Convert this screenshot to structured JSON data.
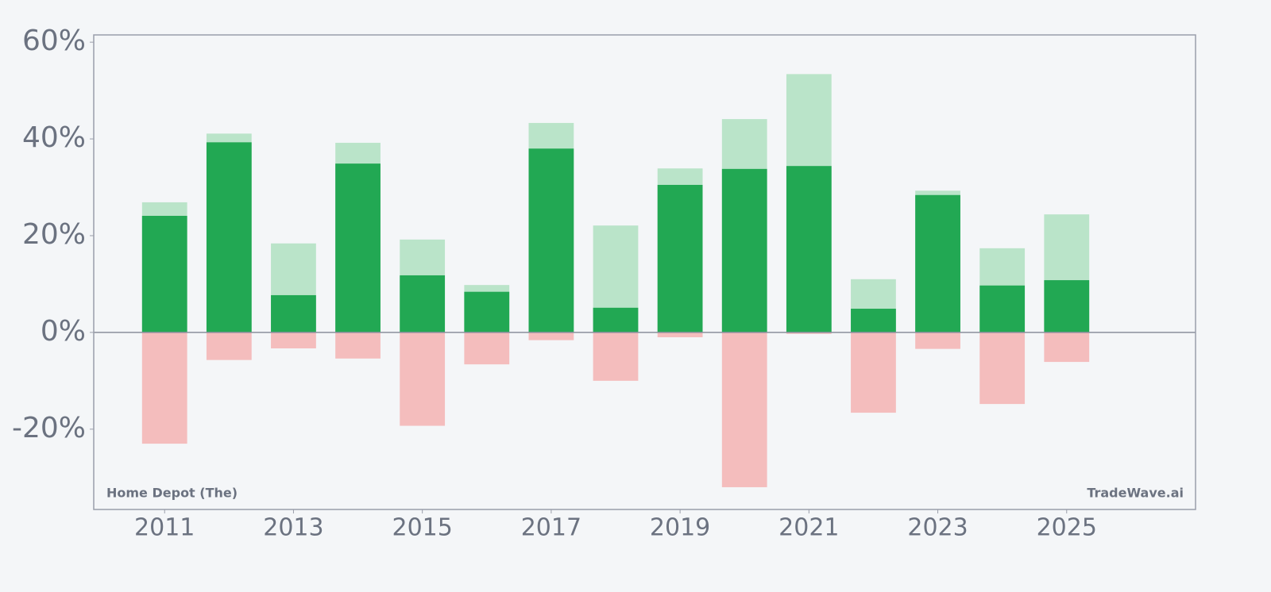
{
  "chart_data": {
    "type": "bar",
    "x": [
      2011,
      2012,
      2013,
      2014,
      2015,
      2016,
      2017,
      2018,
      2019,
      2020,
      2021,
      2022,
      2023,
      2024,
      2025
    ],
    "series": [
      {
        "color": "#bae4c9",
        "values": [
          26.9,
          41.1,
          18.4,
          39.2,
          19.2,
          9.8,
          43.3,
          22.1,
          33.9,
          44.1,
          53.4,
          11.0,
          29.3,
          17.4,
          24.4
        ]
      },
      {
        "color": "#22a853",
        "values": [
          24.1,
          39.3,
          7.7,
          34.9,
          11.8,
          8.4,
          38.0,
          5.1,
          30.5,
          33.8,
          34.4,
          4.9,
          28.4,
          9.7,
          10.8
        ]
      },
      {
        "color": "#f4bdbd",
        "values": [
          -23.0,
          -5.7,
          -3.3,
          -5.4,
          -19.3,
          -6.6,
          -1.6,
          -10.0,
          -1.0,
          -32.0,
          -0.3,
          -16.6,
          -3.4,
          -14.8,
          -6.1
        ]
      }
    ],
    "xlim": [
      2009.9,
      2027.0
    ],
    "xticks": [
      2011,
      2013,
      2015,
      2017,
      2019,
      2021,
      2023,
      2025
    ],
    "ylim": [
      -36.6,
      61.5
    ],
    "yticks": [
      {
        "value": -20,
        "label": "-20%"
      },
      {
        "value": 0,
        "label": "0%"
      },
      {
        "value": 20,
        "label": "20%"
      },
      {
        "value": 40,
        "label": "40%"
      },
      {
        "value": 60,
        "label": "60%"
      }
    ],
    "annotations": [
      "Home Depot (The)",
      "TradeWave.ai"
    ]
  }
}
